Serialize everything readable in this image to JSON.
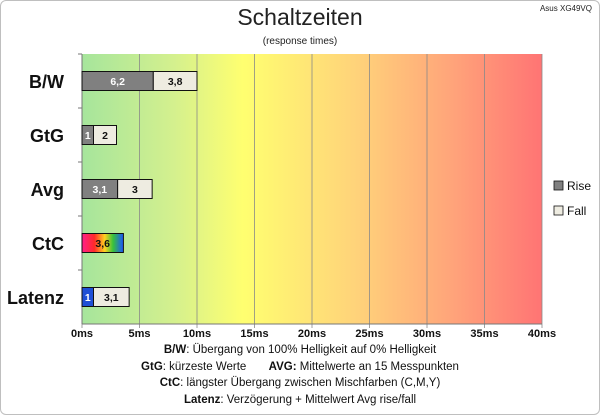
{
  "header": {
    "title": "Schaltzeiten",
    "subtitle": "(response times)",
    "model": "Asus XG49VQ"
  },
  "notes": [
    {
      "key": "B/W",
      "text": ":  Übergang von 100% Helligkeit auf 0% Helligkeit"
    },
    {
      "key": "GtG",
      "text": ": kürzeste  Werte",
      "key2": "AVG:",
      "text2": " Mittelwerte  an 15 Messpunkten"
    },
    {
      "key": "CtC",
      "text": ": längster Übergang  zwischen Mischfarben (C,M,Y)"
    },
    {
      "key": "Latenz",
      "text": ": Verzögerung  + Mittelwert Avg rise/fall"
    }
  ],
  "chart_data": {
    "type": "bar",
    "orientation": "horizontal",
    "stacked": true,
    "title": "Schaltzeiten",
    "subtitle": "(response times)",
    "categories": [
      "B/W",
      "GtG",
      "Avg",
      "CtC",
      "Latenz"
    ],
    "series": [
      {
        "name": "Rise",
        "color": "#808080",
        "values": [
          6.2,
          1,
          3.1,
          3.6,
          1
        ]
      },
      {
        "name": "Fall",
        "color": "#eeece1",
        "values": [
          3.8,
          2,
          3,
          null,
          3.1
        ]
      }
    ],
    "special_fills": {
      "CtC": "multicolor",
      "Latenz_rise": "#1f4fd6"
    },
    "xlim": [
      0,
      40
    ],
    "xticks": [
      0,
      5,
      10,
      15,
      20,
      25,
      30,
      35,
      40
    ],
    "xtick_labels": [
      "0ms",
      "5ms",
      "10ms",
      "15ms",
      "20ms",
      "25ms",
      "30ms",
      "35ms",
      "40ms"
    ],
    "legend": {
      "position": "right",
      "entries": [
        "Rise",
        "Fall"
      ]
    },
    "background": "gradient green-yellow-red",
    "grid": {
      "vertical": true
    }
  }
}
